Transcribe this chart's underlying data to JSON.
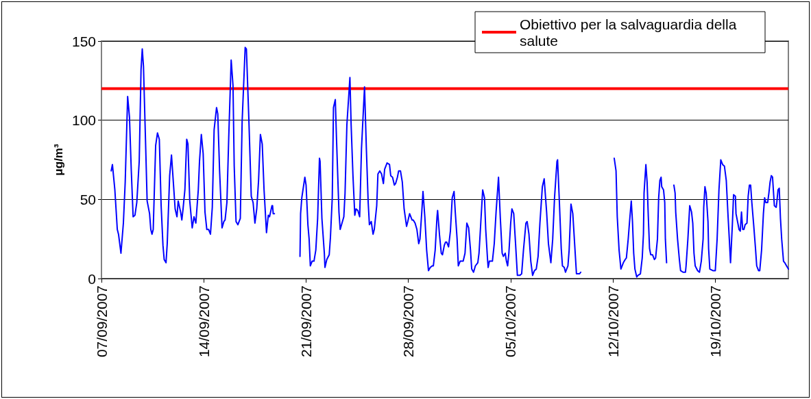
{
  "chart_data": {
    "type": "line",
    "ylabel": "μg/m³",
    "xlim": [
      "2007-09-07",
      "2007-10-24"
    ],
    "xticks": [
      {
        "value": "2007-09-07",
        "label": "07/09/2007"
      },
      {
        "value": "2007-09-14",
        "label": "14/09/2007"
      },
      {
        "value": "2007-09-21",
        "label": "21/09/2007"
      },
      {
        "value": "2007-09-28",
        "label": "28/09/2007"
      },
      {
        "value": "2007-10-05",
        "label": "05/10/2007"
      },
      {
        "value": "2007-10-12",
        "label": "12/10/2007"
      },
      {
        "value": "2007-10-19",
        "label": "19/10/2007"
      }
    ],
    "ylim": [
      0,
      150
    ],
    "yticks": [
      0,
      50,
      100,
      150
    ],
    "grid": "y",
    "legend": "top right",
    "marker": "none",
    "line_style": "solid",
    "ref_lines": [
      {
        "axis": "y",
        "value": 120,
        "label": "Obiettivo per la salvaguardia della salute",
        "color": "#ff0000"
      }
    ],
    "series": [
      {
        "color": "#0000ff",
        "x": [
          "2007-09-07T16:00",
          "2007-09-07T18:00",
          "2007-09-07T22:00",
          "2007-09-08T02:00",
          "2007-09-08T04:00",
          "2007-09-08T08:00",
          "2007-09-08T12:00",
          "2007-09-08T15:00",
          "2007-09-08T19:00",
          "2007-09-08T22:00",
          "2007-09-09T01:00",
          "2007-09-09T04:00",
          "2007-09-09T07:00",
          "2007-09-09T10:00",
          "2007-09-09T14:00",
          "2007-09-09T17:00",
          "2007-09-09T19:00",
          "2007-09-09T21:00",
          "2007-09-10T00:00",
          "2007-09-10T03:00",
          "2007-09-10T07:00",
          "2007-09-10T09:00",
          "2007-09-10T11:00",
          "2007-09-10T13:00",
          "2007-09-10T17:00",
          "2007-09-10T20:00",
          "2007-09-10T23:00",
          "2007-09-11T02:00",
          "2007-09-11T05:00",
          "2007-09-11T07:00",
          "2007-09-11T10:00",
          "2007-09-11T12:00",
          "2007-09-11T16:00",
          "2007-09-11T19:00",
          "2007-09-11T22:00",
          "2007-09-12T01:00",
          "2007-09-12T04:00",
          "2007-09-12T06:00",
          "2007-09-12T10:00",
          "2007-09-12T12:00",
          "2007-09-12T14:00",
          "2007-09-12T17:00",
          "2007-09-12T20:00",
          "2007-09-12T22:00",
          "2007-09-13T01:00",
          "2007-09-13T05:00",
          "2007-09-13T08:00",
          "2007-09-13T11:00",
          "2007-09-13T15:00",
          "2007-09-13T17:00",
          "2007-09-13T20:00",
          "2007-09-13T23:00",
          "2007-09-14T02:00",
          "2007-09-14T05:00",
          "2007-09-14T08:00",
          "2007-09-14T11:00",
          "2007-09-14T14:00",
          "2007-09-14T17:00",
          "2007-09-14T21:00",
          "2007-09-14T23:00",
          "2007-09-15T02:00",
          "2007-09-15T06:00",
          "2007-09-15T09:00",
          "2007-09-15T11:00",
          "2007-09-15T14:00",
          "2007-09-15T17:00",
          "2007-09-15T21:00",
          "2007-09-16T00:00",
          "2007-09-16T02:00",
          "2007-09-16T05:00",
          "2007-09-16T08:00",
          "2007-09-16T12:00",
          "2007-09-16T15:00",
          "2007-09-16T20:00",
          "2007-09-16T22:00",
          "2007-09-17T02:00",
          "2007-09-17T06:00",
          "2007-09-17T09:00",
          "2007-09-17T12:00",
          "2007-09-17T15:00",
          "2007-09-17T18:00",
          "2007-09-17T21:00",
          "2007-09-18T00:00",
          "2007-09-18T03:00",
          "2007-09-18T07:00",
          "2007-09-18T10:00",
          "2007-09-18T12:00",
          "2007-09-18T16:00",
          "2007-09-18T17:00",
          "2007-09-18T18:00",
          "2007-09-18T20:00",
          "2007-09-19T12:00",
          "2007-09-20T14:00",
          "2007-09-20T15:00",
          "2007-09-20T17:00",
          "2007-09-20T22:00",
          "2007-09-21T00:00",
          "2007-09-21T03:00",
          "2007-09-21T05:00",
          "2007-09-21T07:00",
          "2007-09-21T10:00",
          "2007-09-21T13:00",
          "2007-09-21T16:00",
          "2007-09-21T19:00",
          "2007-09-21T22:00",
          "2007-09-21T23:00",
          "2007-09-22T02:00",
          "2007-09-22T06:00",
          "2007-09-22T07:00",
          "2007-09-22T10:00",
          "2007-09-22T14:00",
          "2007-09-22T16:00",
          "2007-09-22T19:00",
          "2007-09-22T21:00",
          "2007-09-23T00:00",
          "2007-09-23T02:00",
          "2007-09-23T06:00",
          "2007-09-23T08:00",
          "2007-09-23T11:00",
          "2007-09-23T14:00",
          "2007-09-23T16:00",
          "2007-09-23T19:00",
          "2007-09-24T00:00",
          "2007-09-24T02:00",
          "2007-09-24T05:00",
          "2007-09-24T08:00",
          "2007-09-24T10:00",
          "2007-09-24T13:00",
          "2007-09-24T16:00",
          "2007-09-24T19:00",
          "2007-09-25T00:00",
          "2007-09-25T03:00",
          "2007-09-25T06:00",
          "2007-09-25T08:00",
          "2007-09-25T11:00",
          "2007-09-25T14:00",
          "2007-09-25T16:00",
          "2007-09-25T20:00",
          "2007-09-25T22:00",
          "2007-09-26T01:00",
          "2007-09-26T04:00",
          "2007-09-26T07:00",
          "2007-09-26T09:00",
          "2007-09-26T13:00",
          "2007-09-26T17:00",
          "2007-09-26T19:00",
          "2007-09-26T22:00",
          "2007-09-27T01:00",
          "2007-09-27T03:00",
          "2007-09-27T06:00",
          "2007-09-27T08:00",
          "2007-09-27T11:00",
          "2007-09-27T14:00",
          "2007-09-27T17:00",
          "2007-09-27T21:00",
          "2007-09-27T23:00",
          "2007-09-28T02:00",
          "2007-09-28T06:00",
          "2007-09-28T08:00",
          "2007-09-28T11:00",
          "2007-09-28T14:00",
          "2007-09-28T17:00",
          "2007-09-28T19:00",
          "2007-09-28T22:00",
          "2007-09-29T00:00",
          "2007-09-29T03:00",
          "2007-09-29T06:00",
          "2007-09-29T09:00",
          "2007-09-29T12:00",
          "2007-09-29T15:00",
          "2007-09-29T17:00",
          "2007-09-29T20:00",
          "2007-09-29T23:00",
          "2007-09-30T00:00",
          "2007-09-30T03:00",
          "2007-09-30T06:00",
          "2007-09-30T08:00",
          "2007-09-30T11:00",
          "2007-09-30T13:00",
          "2007-09-30T15:00",
          "2007-09-30T18:00",
          "2007-09-30T21:00",
          "2007-10-01T00:00",
          "2007-10-01T03:00",
          "2007-10-01T05:00",
          "2007-10-01T08:00",
          "2007-10-01T10:00",
          "2007-10-01T13:00",
          "2007-10-01T18:00",
          "2007-10-01T21:00",
          "2007-10-02T00:00",
          "2007-10-02T03:00",
          "2007-10-02T06:00",
          "2007-10-02T08:00",
          "2007-10-02T11:00",
          "2007-10-02T14:00",
          "2007-10-02T18:00",
          "2007-10-02T20:00",
          "2007-10-02T23:00",
          "2007-10-03T02:00",
          "2007-10-03T05:00",
          "2007-10-03T07:00",
          "2007-10-03T10:00",
          "2007-10-03T11:00",
          "2007-10-03T13:00",
          "2007-10-03T18:00",
          "2007-10-03T21:00",
          "2007-10-04T00:00",
          "2007-10-04T04:00",
          "2007-10-04T07:00",
          "2007-10-04T10:00",
          "2007-10-04T12:00",
          "2007-10-04T15:00",
          "2007-10-04T17:00",
          "2007-10-04T19:00",
          "2007-10-04T21:00",
          "2007-10-05T00:00",
          "2007-10-05T02:00",
          "2007-10-05T05:00",
          "2007-10-05T08:00",
          "2007-10-05T11:00",
          "2007-10-05T15:00",
          "2007-10-05T18:00",
          "2007-10-05T21:00",
          "2007-10-06T01:00",
          "2007-10-06T03:00",
          "2007-10-06T06:00",
          "2007-10-06T09:00",
          "2007-10-06T12:00",
          "2007-10-06T15:00",
          "2007-10-06T18:00",
          "2007-10-06T21:00",
          "2007-10-07T00:00",
          "2007-10-07T04:00",
          "2007-10-07T07:00",
          "2007-10-07T11:00",
          "2007-10-07T14:00",
          "2007-10-07T18:00",
          "2007-10-07T21:00",
          "2007-10-08T00:00",
          "2007-10-08T04:00",
          "2007-10-08T05:00",
          "2007-10-08T08:00",
          "2007-10-08T11:00",
          "2007-10-08T13:00",
          "2007-10-08T16:00",
          "2007-10-08T18:00",
          "2007-10-08T22:00",
          "2007-10-09T00:00",
          "2007-10-09T03:00",
          "2007-10-09T06:00",
          "2007-10-09T09:00",
          "2007-10-09T12:00",
          "2007-10-09T14:00",
          "2007-10-09T17:00",
          "2007-10-09T19:00",
          "2007-10-10T12:00",
          "2007-10-12T02:00",
          "2007-10-12T05:00",
          "2007-10-12T07:00",
          "2007-10-12T10:00",
          "2007-10-12T13:00",
          "2007-10-12T17:00",
          "2007-10-12T20:00",
          "2007-10-12T22:00",
          "2007-10-13T01:00",
          "2007-10-13T03:00",
          "2007-10-13T06:00",
          "2007-10-13T08:00",
          "2007-10-13T10:00",
          "2007-10-13T12:00",
          "2007-10-13T15:00",
          "2007-10-13T17:00",
          "2007-10-13T21:00",
          "2007-10-14T00:00",
          "2007-10-14T02:00",
          "2007-10-14T03:00",
          "2007-10-14T06:00",
          "2007-10-14T08:00",
          "2007-10-14T10:00",
          "2007-10-14T12:00",
          "2007-10-14T14:00",
          "2007-10-14T17:00",
          "2007-10-14T20:00",
          "2007-10-14T22:00",
          "2007-10-15T01:00",
          "2007-10-15T03:00",
          "2007-10-15T05:00",
          "2007-10-15T07:00",
          "2007-10-15T08:00",
          "2007-10-15T11:00",
          "2007-10-15T13:00",
          "2007-10-15T14:00",
          "2007-10-15T16:00",
          "2007-10-15T22:00",
          "2007-10-16T04:00",
          "2007-10-16T06:00",
          "2007-10-16T07:00",
          "2007-10-16T10:00",
          "2007-10-16T13:00",
          "2007-10-16T15:00",
          "2007-10-16T19:00",
          "2007-10-16T23:00",
          "2007-10-17T00:00",
          "2007-10-17T03:00",
          "2007-10-17T06:00",
          "2007-10-17T09:00",
          "2007-10-17T11:00",
          "2007-10-17T13:00",
          "2007-10-17T15:00",
          "2007-10-17T19:00",
          "2007-10-17T22:00",
          "2007-10-18T01:00",
          "2007-10-18T04:00",
          "2007-10-18T05:00",
          "2007-10-18T07:00",
          "2007-10-18T09:00",
          "2007-10-18T12:00",
          "2007-10-18T13:00",
          "2007-10-18T15:00",
          "2007-10-18T20:00",
          "2007-10-19T00:00",
          "2007-10-19T03:00",
          "2007-10-19T06:00",
          "2007-10-19T09:00",
          "2007-10-19T12:00",
          "2007-10-19T15:00",
          "2007-10-19T18:00",
          "2007-10-19T21:00",
          "2007-10-19T23:00",
          "2007-10-20T01:00",
          "2007-10-20T04:00",
          "2007-10-20T06:00",
          "2007-10-20T09:00",
          "2007-10-20T10:00",
          "2007-10-20T13:00",
          "2007-10-20T15:00",
          "2007-10-20T17:00",
          "2007-10-20T19:00",
          "2007-10-20T21:00",
          "2007-10-20T23:00",
          "2007-10-21T01:00",
          "2007-10-21T04:00",
          "2007-10-21T06:00",
          "2007-10-21T08:00",
          "2007-10-21T10:00",
          "2007-10-21T12:00",
          "2007-10-21T15:00",
          "2007-10-21T18:00",
          "2007-10-21T20:00",
          "2007-10-21T23:00",
          "2007-10-22T01:00",
          "2007-10-22T04:00",
          "2007-10-22T07:00",
          "2007-10-22T09:00",
          "2007-10-22T11:00",
          "2007-10-22T14:00",
          "2007-10-22T16:00",
          "2007-10-22T18:00",
          "2007-10-22T20:00",
          "2007-10-22T22:00",
          "2007-10-22T23:30",
          "2007-10-23T01:00",
          "2007-10-23T04:00",
          "2007-10-23T05:00",
          "2007-10-23T07:00",
          "2007-10-23T09:00",
          "2007-10-23T11:00",
          "2007-10-23T13:00",
          "2007-10-23T16:00",
          "2007-10-23T18:00",
          "2007-10-23T21:00",
          "2007-10-24T00:00"
        ],
        "values": [
          68,
          72,
          56,
          31,
          28,
          16,
          35,
          61,
          115,
          102,
          68,
          39,
          40,
          48,
          74,
          132,
          145,
          134,
          92,
          49,
          41,
          31,
          28,
          31,
          84,
          92,
          88,
          46,
          21,
          12,
          10,
          22,
          65,
          78,
          61,
          44,
          39,
          49,
          42,
          37,
          44,
          56,
          88,
          85,
          49,
          32,
          39,
          35,
          56,
          74,
          91,
          79,
          42,
          31,
          31,
          28,
          45,
          94,
          108,
          104,
          68,
          32,
          36,
          37,
          48,
          89,
          138,
          122,
          71,
          36,
          34,
          38,
          99,
          146,
          145,
          101,
          52,
          48,
          35,
          44,
          62,
          91,
          85,
          56,
          29,
          40,
          39,
          46,
          46,
          41,
          41,
          null,
          14,
          41,
          51,
          64,
          59,
          34,
          25,
          8,
          11,
          11,
          18,
          38,
          76,
          74,
          38,
          16,
          7,
          12,
          15,
          26,
          51,
          108,
          113,
          88,
          42,
          31,
          35,
          39,
          54,
          97,
          127,
          97,
          65,
          40,
          44,
          43,
          39,
          82,
          121,
          82,
          48,
          34,
          36,
          28,
          31,
          46,
          66,
          68,
          66,
          60,
          69,
          73,
          72,
          65,
          64,
          59,
          60,
          64,
          68,
          68,
          61,
          44,
          33,
          36,
          41,
          37,
          37,
          35,
          31,
          22,
          25,
          42,
          55,
          39,
          18,
          5,
          7,
          8,
          8,
          18,
          39,
          43,
          28,
          16,
          15,
          21,
          23,
          23,
          20,
          30,
          51,
          55,
          42,
          25,
          8,
          11,
          11,
          16,
          35,
          32,
          18,
          6,
          4,
          8,
          10,
          16,
          36,
          56,
          51,
          31,
          12,
          7,
          11,
          11,
          22,
          42,
          64,
          38,
          16,
          14,
          16,
          11,
          8,
          16,
          35,
          44,
          41,
          22,
          2,
          2,
          3,
          18,
          35,
          36,
          28,
          11,
          2,
          5,
          6,
          14,
          35,
          58,
          63,
          42,
          22,
          10,
          25,
          51,
          74,
          75,
          48,
          19,
          8,
          7,
          4,
          8,
          18,
          47,
          41,
          22,
          3,
          3,
          3,
          4,
          null,
          76,
          68,
          39,
          18,
          6,
          10,
          12,
          13,
          25,
          35,
          49,
          36,
          16,
          6,
          1,
          2,
          3,
          13,
          28,
          54,
          72,
          61,
          39,
          19,
          15,
          15,
          12,
          13,
          25,
          51,
          62,
          64,
          58,
          56,
          48,
          25,
          10,
          null,
          59,
          54,
          42,
          25,
          12,
          5,
          4,
          4,
          8,
          25,
          46,
          42,
          35,
          16,
          8,
          5,
          4,
          11,
          25,
          45,
          58,
          54,
          36,
          19,
          6,
          5,
          5,
          25,
          56,
          75,
          72,
          71,
          62,
          39,
          25,
          10,
          34,
          53,
          52,
          41,
          35,
          31,
          30,
          42,
          31,
          31,
          34,
          35,
          52,
          59,
          59,
          48,
          34,
          19,
          8,
          5,
          5,
          18,
          41,
          51,
          48,
          48,
          54,
          61,
          65,
          64,
          55,
          46,
          45,
          48,
          56,
          57,
          38,
          25,
          11,
          10,
          8,
          6
        ]
      }
    ]
  }
}
